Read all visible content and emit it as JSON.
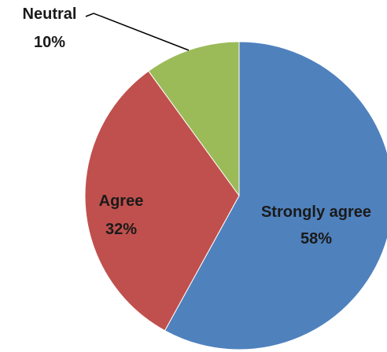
{
  "chart_data": {
    "type": "pie",
    "categories": [
      "Strongly agree",
      "Agree",
      "Neutral"
    ],
    "values": [
      58,
      32,
      10
    ],
    "value_labels": [
      "58%",
      "32%",
      "10%"
    ],
    "colors": [
      "#4F81BD",
      "#C0504D",
      "#9BBB59"
    ],
    "start": "12 o'clock",
    "direction": "clockwise",
    "legend": "none",
    "data_labels": "category name and percentage"
  }
}
